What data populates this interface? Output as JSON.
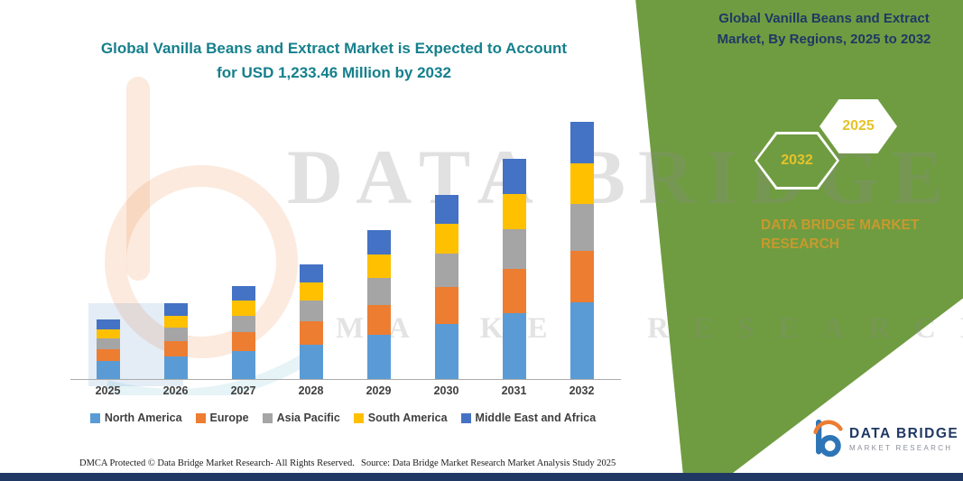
{
  "colors": {
    "panel_green": "#6F9C41",
    "heading_navy": "#1F3864",
    "title_teal": "#15808C",
    "badge_yellow": "#E5C32B",
    "brand_orange": "#C8992E",
    "bottom_bar_navy": "#203864"
  },
  "chart": {
    "title_line1": "Global Vanilla Beans and Extract Market is Expected to Account",
    "title_line2": "for USD 1,233.46 Million by 2032"
  },
  "chart_data": {
    "type": "bar",
    "stacked": true,
    "title": "Global Vanilla Beans and Extract Market is Expected to Account for USD 1,233.46 Million by 2032",
    "unit": "USD Million",
    "categories": [
      "2025",
      "2026",
      "2027",
      "2028",
      "2029",
      "2030",
      "2031",
      "2032"
    ],
    "series": [
      {
        "name": "North America",
        "color": "#5B9BD5",
        "values": [
          85.5,
          108.6,
          134.4,
          165.6,
          213.9,
          265.2,
          317.4,
          370.0
        ]
      },
      {
        "name": "Europe",
        "color": "#ED7D31",
        "values": [
          57.0,
          72.4,
          89.6,
          110.4,
          142.6,
          176.8,
          211.6,
          246.7
        ]
      },
      {
        "name": "Asia Pacific",
        "color": "#A5A5A5",
        "values": [
          51.3,
          65.2,
          80.6,
          99.4,
          128.3,
          159.1,
          190.4,
          222.0
        ]
      },
      {
        "name": "South America",
        "color": "#FFC000",
        "values": [
          45.6,
          57.9,
          71.7,
          88.3,
          114.1,
          141.4,
          169.3,
          197.4
        ]
      },
      {
        "name": "Middle East and Africa",
        "color": "#4472C4",
        "values": [
          45.6,
          57.9,
          71.7,
          88.3,
          114.1,
          141.4,
          169.3,
          197.36
        ]
      }
    ],
    "ylim": [
      0,
      1233.46
    ],
    "grid": false,
    "legend_position": "bottom"
  },
  "right_panel": {
    "heading": "Global Vanilla Beans and Extract Market, By Regions, 2025 to 2032",
    "badge_primary": "2032",
    "badge_secondary": "2025",
    "brand_text": "DATA BRIDGE MARKET RESEARCH"
  },
  "watermark": {
    "line1": "DATA BRIDGE",
    "line2": "MARKET RESEARCH"
  },
  "footer": {
    "dmca": "DMCA Protected © Data Bridge Market Research-  All Rights Reserved.",
    "source": "Source: Data Bridge Market Research  Market Analysis Study 2025"
  },
  "logo": {
    "title": "DATA BRIDGE",
    "subtitle": "MARKET RESEARCH"
  }
}
